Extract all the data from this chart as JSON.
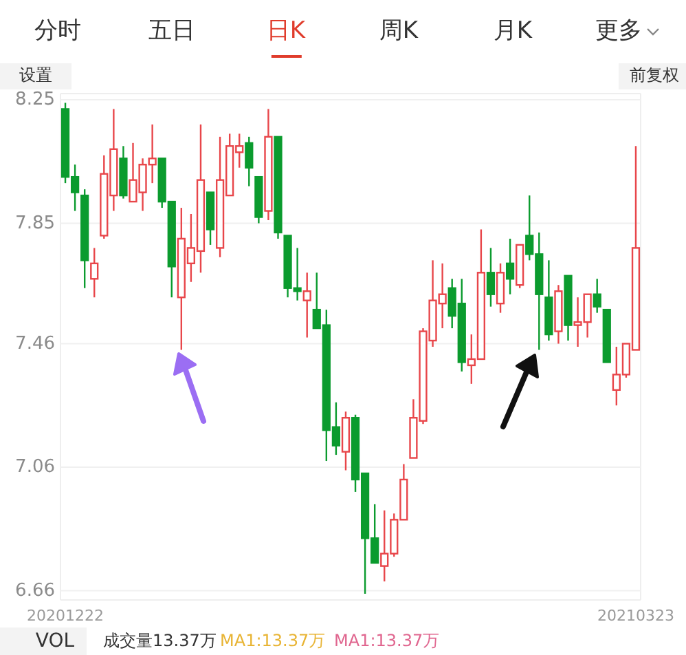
{
  "chart_data": {
    "type": "candlestick",
    "categories": [
      "20201222",
      null,
      null,
      null,
      null,
      null,
      null,
      null,
      null,
      null,
      null,
      null,
      null,
      null,
      null,
      null,
      null,
      null,
      null,
      null,
      null,
      null,
      null,
      null,
      null,
      null,
      null,
      null,
      null,
      null,
      null,
      null,
      null,
      null,
      null,
      null,
      null,
      null,
      null,
      null,
      null,
      null,
      null,
      null,
      null,
      null,
      null,
      null,
      null,
      null,
      null,
      null,
      null,
      null,
      null,
      null,
      null,
      null,
      null,
      "20210323"
    ],
    "ohlc": [
      [
        8.22,
        8.24,
        7.98,
        8.0
      ],
      [
        8.0,
        8.04,
        7.89,
        7.95
      ],
      [
        7.94,
        7.96,
        7.64,
        7.73
      ],
      [
        7.67,
        7.77,
        7.61,
        7.72
      ],
      [
        7.81,
        8.07,
        7.8,
        8.01
      ],
      [
        7.94,
        8.22,
        7.89,
        8.09
      ],
      [
        8.06,
        8.1,
        7.93,
        7.94
      ],
      [
        7.92,
        8.11,
        7.92,
        7.99
      ],
      [
        7.95,
        8.06,
        7.89,
        8.04
      ],
      [
        8.04,
        8.17,
        7.98,
        8.06
      ],
      [
        8.06,
        8.06,
        7.9,
        7.92
      ],
      [
        7.92,
        7.92,
        7.61,
        7.71
      ],
      [
        7.61,
        7.9,
        7.44,
        7.8
      ],
      [
        7.72,
        7.88,
        7.66,
        7.77
      ],
      [
        7.76,
        8.17,
        7.69,
        7.99
      ],
      [
        7.95,
        7.95,
        7.78,
        7.83
      ],
      [
        7.77,
        8.13,
        7.74,
        7.99
      ],
      [
        7.94,
        8.14,
        7.94,
        8.1
      ],
      [
        8.08,
        8.14,
        8.03,
        8.1
      ],
      [
        8.11,
        8.13,
        7.97,
        8.03
      ],
      [
        8.0,
        8.0,
        7.85,
        7.87
      ],
      [
        7.89,
        8.22,
        7.86,
        8.13
      ],
      [
        8.13,
        8.13,
        7.8,
        7.82
      ],
      [
        7.81,
        7.81,
        7.61,
        7.64
      ],
      [
        7.64,
        7.77,
        7.6,
        7.63
      ],
      [
        7.6,
        7.69,
        7.48,
        7.63
      ],
      [
        7.57,
        7.69,
        7.51,
        7.51
      ],
      [
        7.52,
        7.57,
        7.08,
        7.18
      ],
      [
        7.19,
        7.27,
        7.1,
        7.13
      ],
      [
        7.11,
        7.24,
        7.05,
        7.22
      ],
      [
        7.22,
        7.23,
        6.98,
        7.02
      ],
      [
        7.04,
        7.04,
        6.65,
        6.83
      ],
      [
        6.83,
        6.94,
        6.75,
        6.75
      ],
      [
        6.74,
        6.92,
        6.69,
        6.78
      ],
      [
        6.78,
        6.91,
        6.77,
        6.89
      ],
      [
        6.89,
        7.07,
        6.89,
        7.02
      ],
      [
        7.09,
        7.28,
        7.09,
        7.22
      ],
      [
        7.21,
        7.51,
        7.2,
        7.5
      ],
      [
        7.47,
        7.73,
        7.45,
        7.6
      ],
      [
        7.59,
        7.72,
        7.51,
        7.62
      ],
      [
        7.64,
        7.67,
        7.51,
        7.55
      ],
      [
        7.59,
        7.67,
        7.37,
        7.4
      ],
      [
        7.39,
        7.49,
        7.33,
        7.41
      ],
      [
        7.41,
        7.83,
        7.41,
        7.69
      ],
      [
        7.69,
        7.77,
        7.58,
        7.62
      ],
      [
        7.59,
        7.72,
        7.56,
        7.69
      ],
      [
        7.72,
        7.8,
        7.62,
        7.67
      ],
      [
        7.65,
        7.78,
        7.64,
        7.78
      ],
      [
        7.81,
        7.94,
        7.73,
        7.75
      ],
      [
        7.75,
        7.82,
        7.44,
        7.62
      ],
      [
        7.61,
        7.73,
        7.47,
        7.49
      ],
      [
        7.5,
        7.65,
        7.46,
        7.63
      ],
      [
        7.68,
        7.68,
        7.47,
        7.52
      ],
      [
        7.52,
        7.61,
        7.45,
        7.53
      ],
      [
        7.53,
        7.62,
        7.48,
        7.62
      ],
      [
        7.62,
        7.67,
        7.56,
        7.58
      ],
      [
        7.57,
        7.57,
        7.4,
        7.4
      ],
      [
        7.31,
        7.45,
        7.26,
        7.36
      ],
      [
        7.36,
        7.46,
        7.35,
        7.46
      ],
      [
        7.44,
        8.1,
        7.44,
        7.77
      ]
    ],
    "colors": [
      "#0b9b2e",
      "#0b9b2e",
      "#0b9b2e",
      "#e8464a",
      "#e8464a",
      "#e8464a",
      "#0b9b2e",
      "#e8464a",
      "#e8464a",
      "#e8464a",
      "#0b9b2e",
      "#0b9b2e",
      "#e8464a",
      "#e8464a",
      "#e8464a",
      "#0b9b2e",
      "#e8464a",
      "#e8464a",
      "#e8464a",
      "#0b9b2e",
      "#0b9b2e",
      "#e8464a",
      "#0b9b2e",
      "#0b9b2e",
      "#0b9b2e",
      "#e8464a",
      "#0b9b2e",
      "#0b9b2e",
      "#0b9b2e",
      "#e8464a",
      "#0b9b2e",
      "#0b9b2e",
      "#0b9b2e",
      "#e8464a",
      "#e8464a",
      "#e8464a",
      "#e8464a",
      "#e8464a",
      "#e8464a",
      "#e8464a",
      "#0b9b2e",
      "#0b9b2e",
      "#e8464a",
      "#e8464a",
      "#0b9b2e",
      "#e8464a",
      "#0b9b2e",
      "#e8464a",
      "#0b9b2e",
      "#0b9b2e",
      "#0b9b2e",
      "#e8464a",
      "#0b9b2e",
      "#e8464a",
      "#e8464a",
      "#0b9b2e",
      "#0b9b2e",
      "#e8464a",
      "#e8464a",
      "#e8464a"
    ],
    "ylim": [
      6.63,
      8.27
    ],
    "yticks": [
      6.66,
      7.06,
      7.46,
      7.85,
      8.25
    ],
    "grid": "y",
    "annotations": [
      "分时",
      "五日",
      "日K",
      "周K",
      "月K",
      "更多",
      "设置",
      "前复权",
      "VOL",
      "成交量13.37万",
      "MA1:13.37万",
      "MA1:13.37万"
    ]
  }
}
